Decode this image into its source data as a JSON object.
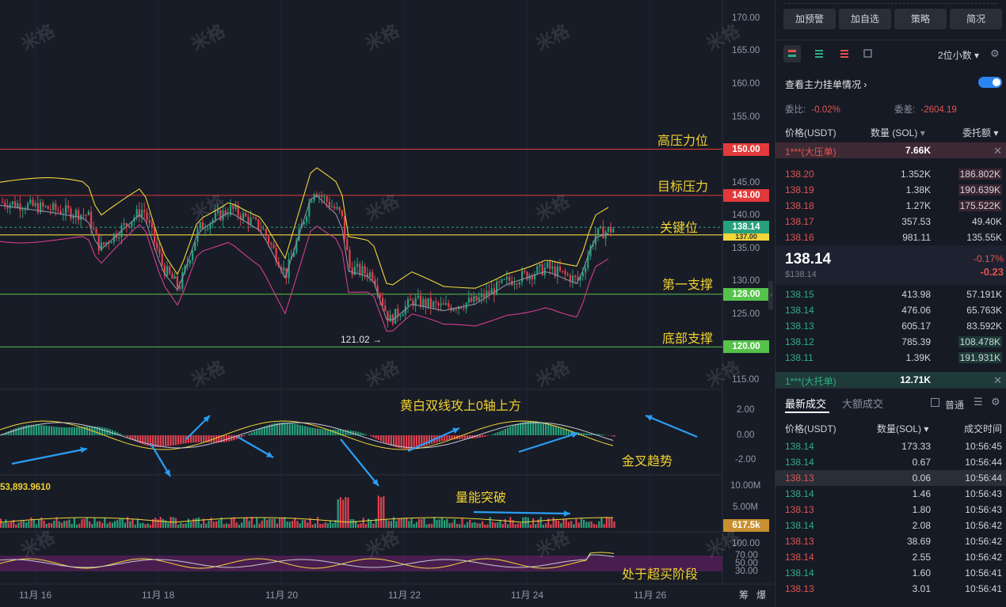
{
  "chart": {
    "price_axis": [
      "170.00",
      "165.00",
      "160.00",
      "155.00",
      "145.00",
      "140.00",
      "135.00",
      "130.00",
      "125.00",
      "115.00"
    ],
    "macd_axis": [
      "2.00",
      "0.00",
      "-2.00"
    ],
    "vol_axis": [
      "10.00M",
      "5.00M"
    ],
    "rsi_axis": [
      "100.00",
      "70.00",
      "50.00",
      "30.00"
    ],
    "x_axis": [
      "11月 16",
      "11月 18",
      "11月 20",
      "11月 22",
      "11月 24",
      "11月 26"
    ],
    "axis_tools": [
      "筹",
      "爆"
    ],
    "badges": {
      "b150": "150.00",
      "b143": "143.00",
      "last": "138.14",
      "last_under": "137.00",
      "b128": "128.00",
      "b120": "120.00",
      "vol": "617.5k"
    },
    "low_marker": "121.02 →",
    "macd_value": "53,893.9610",
    "annotations": {
      "high_pressure": "高压力位",
      "target_pressure": "目标压力",
      "key_level": "关键位",
      "first_support": "第一支撑",
      "bottom_support": "底部支撑",
      "macd_note": "黄白双线攻上0轴上方",
      "golden_cross": "金叉趋势",
      "volume_break": "量能突破",
      "overbought": "处于超买阶段"
    },
    "watermark": "米格",
    "colors": {
      "red_line": "#e23a3a",
      "yellow_line": "#f2d63a",
      "green_line": "#55c24a",
      "up": "#26a17b",
      "down": "#e0414f"
    }
  },
  "panel": {
    "buttons": [
      "加预警",
      "加自选",
      "策略",
      "简况"
    ],
    "decimal": "2位小数",
    "main_orders": "查看主力挂单情况",
    "ratio_label": "委比:",
    "ratio_value": "-0.02%",
    "diff_label": "委差:",
    "diff_value": "-2604.19",
    "col_price": "价格(USDT)",
    "col_qty": "数量 (SOL)",
    "col_total": "委托额",
    "ask_big": {
      "label": "1***(大压单)",
      "qty": "7.66K"
    },
    "asks": [
      {
        "price": "138.20",
        "qty": "1.352K",
        "total": "186.802K"
      },
      {
        "price": "138.19",
        "qty": "1.38K",
        "total": "190.639K"
      },
      {
        "price": "138.18",
        "qty": "1.27K",
        "total": "175.522K"
      },
      {
        "price": "138.17",
        "qty": "357.53",
        "total": "49.40K"
      },
      {
        "price": "138.16",
        "qty": "981.11",
        "total": "135.55K"
      }
    ],
    "last_price": "138.14",
    "last_usd": "$138.14",
    "change_pct": "-0.17%",
    "change_abs": "-0.23",
    "bids": [
      {
        "price": "138.15",
        "qty": "413.98",
        "total": "57.191K"
      },
      {
        "price": "138.14",
        "qty": "476.06",
        "total": "65.763K"
      },
      {
        "price": "138.13",
        "qty": "605.17",
        "total": "83.592K"
      },
      {
        "price": "138.12",
        "qty": "785.39",
        "total": "108.478K"
      },
      {
        "price": "138.11",
        "qty": "1.39K",
        "total": "191.931K"
      }
    ],
    "bid_big": {
      "label": "1***(大托单)",
      "qty": "12.71K"
    },
    "tab_latest": "最新成交",
    "tab_large": "大额成交",
    "normal": "普通",
    "trade_cols": {
      "price": "价格(USDT)",
      "qty": "数量(SOL)",
      "time": "成交时间"
    },
    "trades": [
      {
        "price": "138.14",
        "qty": "173.33",
        "time": "10:56:45",
        "side": "buy"
      },
      {
        "price": "138.14",
        "qty": "0.67",
        "time": "10:56:44",
        "side": "buy"
      },
      {
        "price": "138.13",
        "qty": "0.06",
        "time": "10:56:44",
        "side": "sell"
      },
      {
        "price": "138.14",
        "qty": "1.46",
        "time": "10:56:43",
        "side": "buy"
      },
      {
        "price": "138.13",
        "qty": "1.80",
        "time": "10:56:43",
        "side": "sell"
      },
      {
        "price": "138.14",
        "qty": "2.08",
        "time": "10:56:42",
        "side": "buy"
      },
      {
        "price": "138.13",
        "qty": "38.69",
        "time": "10:56:42",
        "side": "sell"
      },
      {
        "price": "138.14",
        "qty": "2.55",
        "time": "10:56:42",
        "side": "sell"
      },
      {
        "price": "138.14",
        "qty": "1.60",
        "time": "10:56:41",
        "side": "buy"
      },
      {
        "price": "138.13",
        "qty": "3.01",
        "time": "10:56:41",
        "side": "sell"
      }
    ]
  }
}
